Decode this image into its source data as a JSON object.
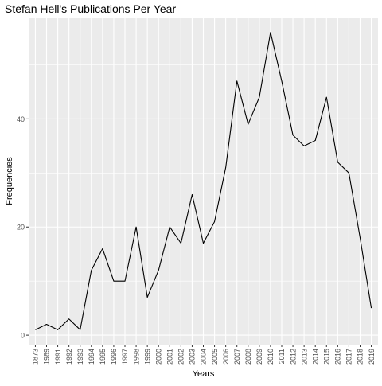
{
  "chart_data": {
    "type": "line",
    "title": "Stefan Hell's Publications Per Year",
    "xlabel": "Years",
    "ylabel": "Frequencies",
    "categories": [
      "1873",
      "1989",
      "1991",
      "1992",
      "1993",
      "1994",
      "1995",
      "1996",
      "1997",
      "1998",
      "1999",
      "2000",
      "2001",
      "2002",
      "2003",
      "2004",
      "2005",
      "2006",
      "2007",
      "2008",
      "2009",
      "2010",
      "2011",
      "2012",
      "2013",
      "2014",
      "2015",
      "2016",
      "2017",
      "2018",
      "2019"
    ],
    "series": [
      {
        "values": [
          1,
          2,
          1,
          3,
          1,
          12,
          16,
          10,
          10,
          20,
          7,
          12,
          20,
          17,
          26,
          17,
          21,
          31,
          47,
          39,
          44,
          56,
          47,
          37,
          35,
          36,
          44,
          32,
          30,
          18,
          5
        ]
      }
    ],
    "ylim": [
      -1.75,
      58.75
    ],
    "yticks": [
      0,
      20,
      40
    ],
    "grid": true,
    "legend": "none",
    "colors": {
      "panel": "#EBEBEB",
      "grid_major": "#FFFFFF",
      "line": "#000000",
      "tick_text": "#4D4D4D"
    }
  }
}
